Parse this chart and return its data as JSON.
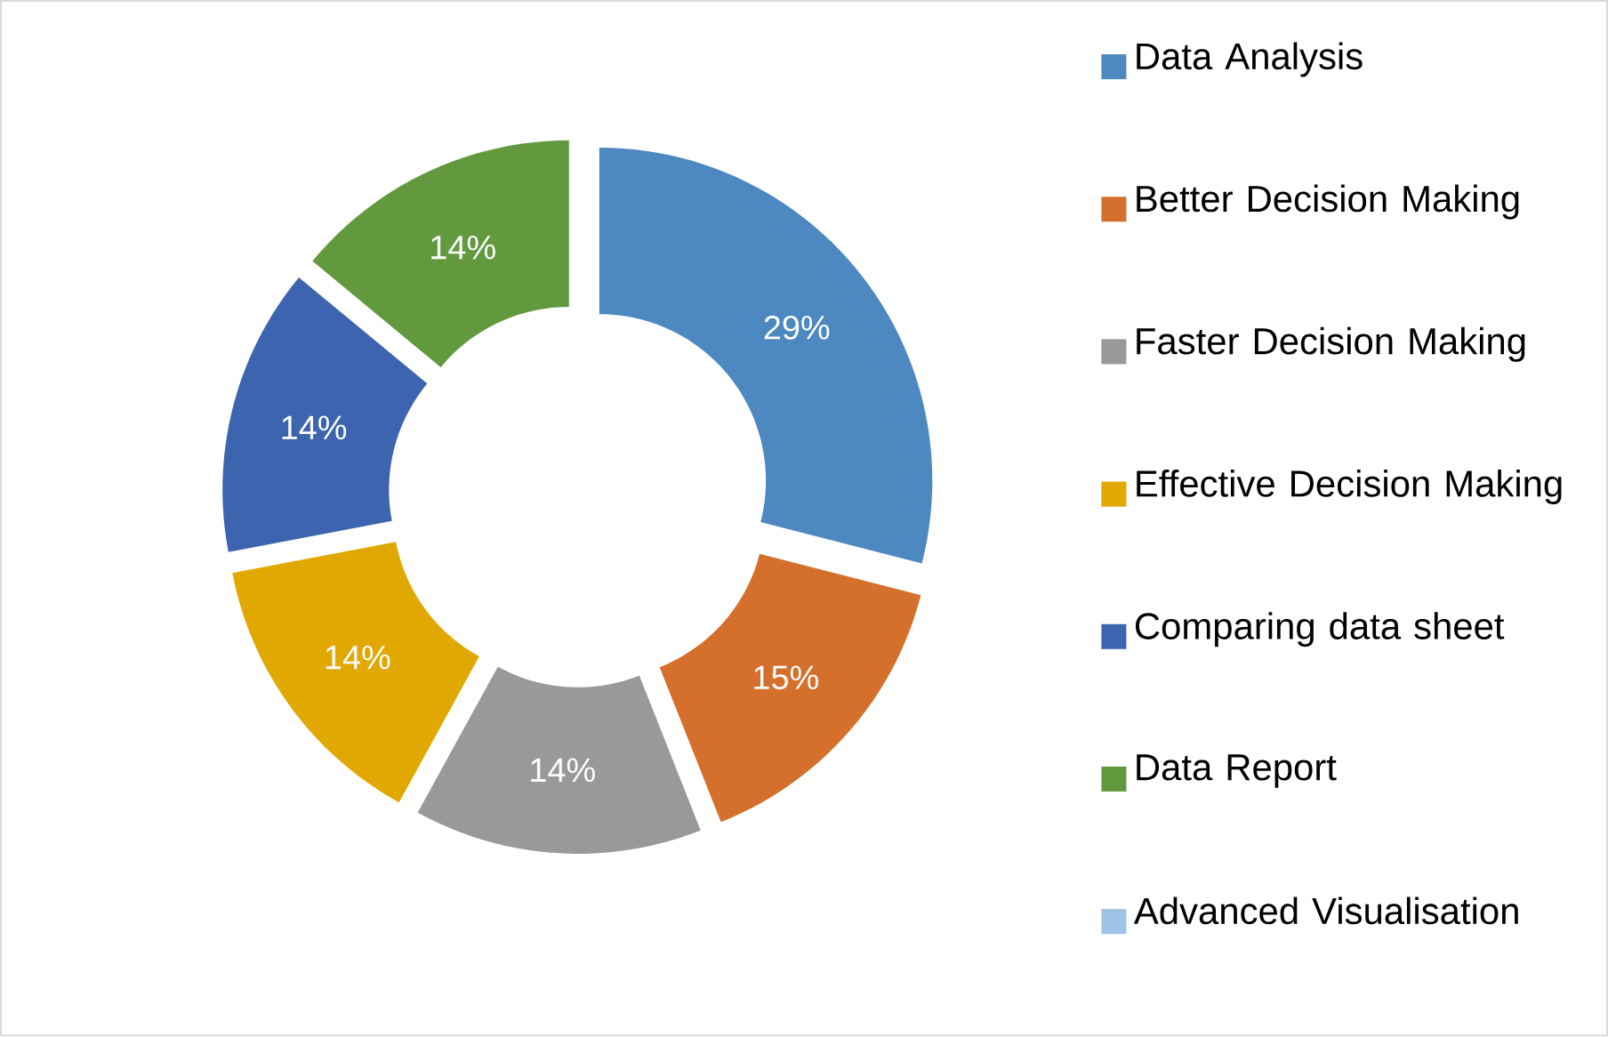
{
  "chart_data": {
    "type": "donut",
    "categories": [
      "Data Analysis",
      "Better Decision Making",
      "Faster Decision Making",
      "Effective Decision Making",
      "Comparing data sheet",
      "Data Report",
      "Advanced Visualisation"
    ],
    "values": [
      29,
      15,
      14,
      14,
      14,
      14,
      0
    ],
    "colors": [
      "#4e88c0",
      "#d4702b",
      "#999999",
      "#e0a800",
      "#3d64ae",
      "#62993e",
      "#9dc3e6"
    ],
    "value_labels": [
      "29%",
      "15%",
      "14%",
      "14%",
      "14%",
      "14%",
      null
    ],
    "legend": "right"
  }
}
